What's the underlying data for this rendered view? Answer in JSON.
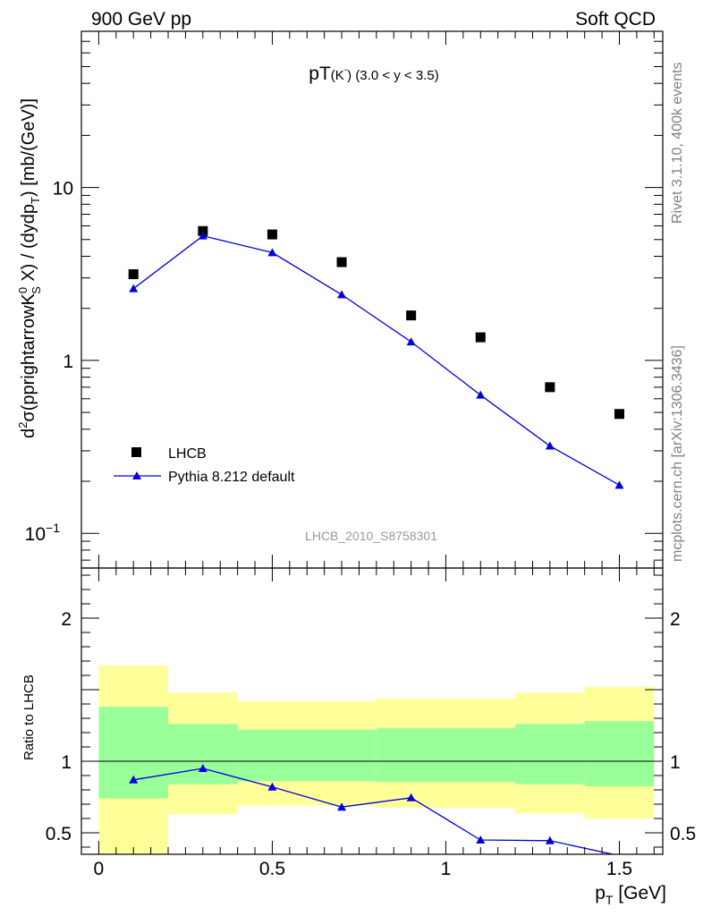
{
  "header": {
    "left": "900 GeV pp",
    "right": "Soft QCD"
  },
  "side_labels": {
    "rivet": "Rivet 3.1.10,  400k events",
    "mcplots": "mcplots.cern.ch [arXiv:1306.3436]"
  },
  "watermark": "LHCB_2010_S8758301",
  "colors": {
    "data": "#000000",
    "mc": "#0000dd",
    "band_inner": "#99ff99",
    "band_outer": "#ffff99"
  },
  "chart_data": [
    {
      "type": "scatter",
      "panel": "main",
      "title_main": "pT",
      "title_particle": "(K",
      "title_sup": "-",
      "title_close": ")",
      "title_range": "(3.0 < y < 3.5)",
      "ylabel": "d²σ(pprightarrowK⁰S X) / (dydpT) [mb/(GeV)]",
      "ylabel_parts": {
        "d": "d",
        "sup2": "2",
        "sigma": "σ(pprightarrowK",
        "sup0": "0",
        "subS": "S",
        "mid": " X) / (dydp",
        "subT": "T",
        "end": ") [mb/(GeV)]"
      },
      "yscale": "log",
      "ylim": [
        0.063,
        80
      ],
      "xlim": [
        -0.05,
        1.625
      ],
      "yticks": [
        {
          "value": 10,
          "label": "10"
        },
        {
          "value": 1,
          "label": "1"
        },
        {
          "value": 0.1,
          "label": "10",
          "sup": "−1"
        }
      ],
      "legend_position": "bottom-left",
      "series": [
        {
          "name": "LHCB",
          "marker": "square",
          "x": [
            0.1,
            0.3,
            0.5,
            0.7,
            0.9,
            1.1,
            1.3,
            1.5
          ],
          "values": [
            3.15,
            5.6,
            5.35,
            3.7,
            1.82,
            1.36,
            0.7,
            0.49
          ]
        },
        {
          "name": "Pythia 8.212 default",
          "marker": "triangle",
          "line": true,
          "x": [
            0.1,
            0.3,
            0.5,
            0.7,
            0.9,
            1.1,
            1.3,
            1.5
          ],
          "values": [
            2.6,
            5.25,
            4.2,
            2.4,
            1.28,
            0.63,
            0.32,
            0.19
          ]
        }
      ]
    },
    {
      "type": "line",
      "panel": "ratio",
      "ylabel": "Ratio to LHCB",
      "xlabel": "p",
      "xlabel_sub": "T",
      "xlabel_unit": " [GeV]",
      "xlim": [
        -0.05,
        1.625
      ],
      "ylim": [
        0.35,
        2.35
      ],
      "yticks": [
        {
          "value": 0.5,
          "label": "0.5"
        },
        {
          "value": 1,
          "label": "1"
        },
        {
          "value": 2,
          "label": "2"
        }
      ],
      "xticks": [
        {
          "value": 0,
          "label": "0"
        },
        {
          "value": 0.5,
          "label": "0.5"
        },
        {
          "value": 1,
          "label": "1"
        },
        {
          "value": 1.5,
          "label": "1.5"
        }
      ],
      "reference_line": 1,
      "bands": [
        {
          "x0": 0.0,
          "x1": 0.2,
          "inner": [
            0.74,
            1.38
          ],
          "outer": [
            0.35,
            1.67
          ]
        },
        {
          "x0": 0.2,
          "x1": 0.4,
          "inner": [
            0.84,
            1.26
          ],
          "outer": [
            0.63,
            1.48
          ]
        },
        {
          "x0": 0.4,
          "x1": 0.8,
          "inner": [
            0.86,
            1.22
          ],
          "outer": [
            0.69,
            1.42
          ]
        },
        {
          "x0": 0.8,
          "x1": 1.2,
          "inner": [
            0.855,
            1.23
          ],
          "outer": [
            0.675,
            1.44
          ]
        },
        {
          "x0": 1.2,
          "x1": 1.4,
          "inner": [
            0.84,
            1.26
          ],
          "outer": [
            0.635,
            1.48
          ]
        },
        {
          "x0": 1.4,
          "x1": 1.6,
          "inner": [
            0.825,
            1.28
          ],
          "outer": [
            0.6,
            1.52
          ]
        }
      ],
      "series": [
        {
          "name": "Pythia 8.212 default / LHCB",
          "marker": "triangle",
          "x": [
            0.1,
            0.3,
            0.5,
            0.7,
            0.9,
            1.1,
            1.3,
            1.5
          ],
          "values": [
            0.87,
            0.95,
            0.82,
            0.68,
            0.745,
            0.45,
            0.445,
            0.34
          ]
        }
      ]
    }
  ]
}
